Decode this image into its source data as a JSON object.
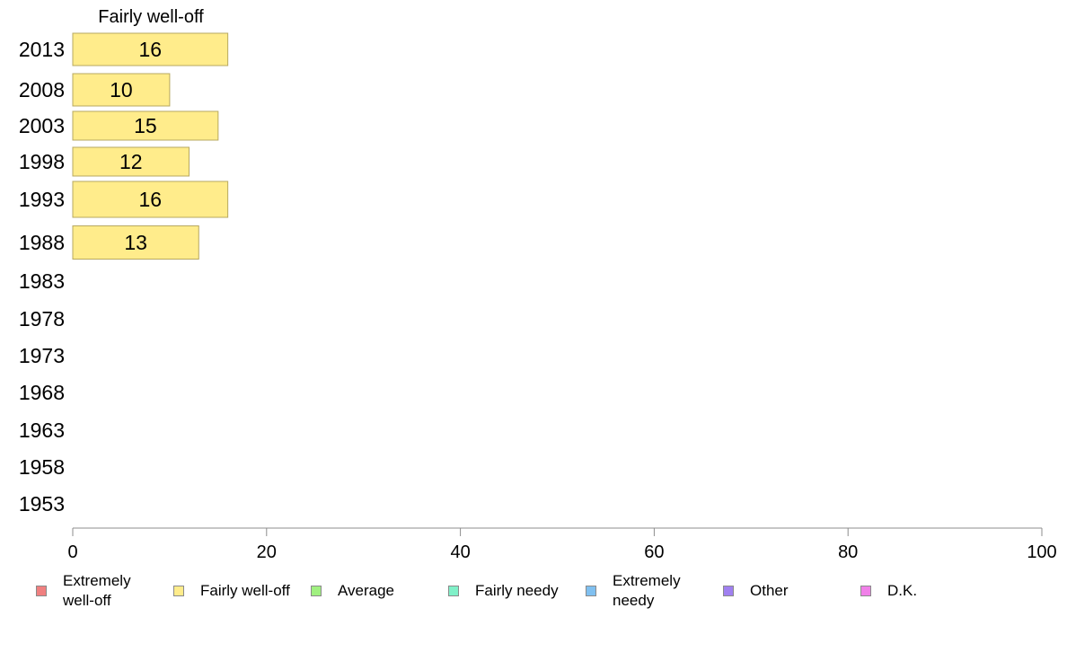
{
  "chart_data": {
    "type": "bar",
    "orientation": "horizontal",
    "title": "Fairly well-off",
    "categories": [
      "2013",
      "2008",
      "2003",
      "1998",
      "1993",
      "1988",
      "1983",
      "1978",
      "1973",
      "1968",
      "1963",
      "1958",
      "1953"
    ],
    "series": [
      {
        "name": "Fairly well-off",
        "values": [
          16,
          10,
          15,
          12,
          16,
          13,
          null,
          null,
          null,
          null,
          null,
          null,
          null
        ]
      }
    ],
    "xlim": [
      0,
      100
    ],
    "xticks": [
      0,
      20,
      40,
      60,
      80,
      100
    ],
    "xlabel": "",
    "ylabel": "",
    "grid": false,
    "legend_position": "bottom",
    "bar_color": "#ffec8b",
    "bar_edge_color": "#b7a860"
  },
  "legend": {
    "items": [
      {
        "label": "Extremely well-off",
        "color": "#f08080"
      },
      {
        "label": "Fairly well-off",
        "color": "#ffec8b"
      },
      {
        "label": "Average",
        "color": "#a0f080"
      },
      {
        "label": "Fairly needy",
        "color": "#80f0c8"
      },
      {
        "label": "Extremely needy",
        "color": "#80c0f0"
      },
      {
        "label": "Other",
        "color": "#a080f0"
      },
      {
        "label": "D.K.",
        "color": "#f080e8"
      }
    ]
  }
}
